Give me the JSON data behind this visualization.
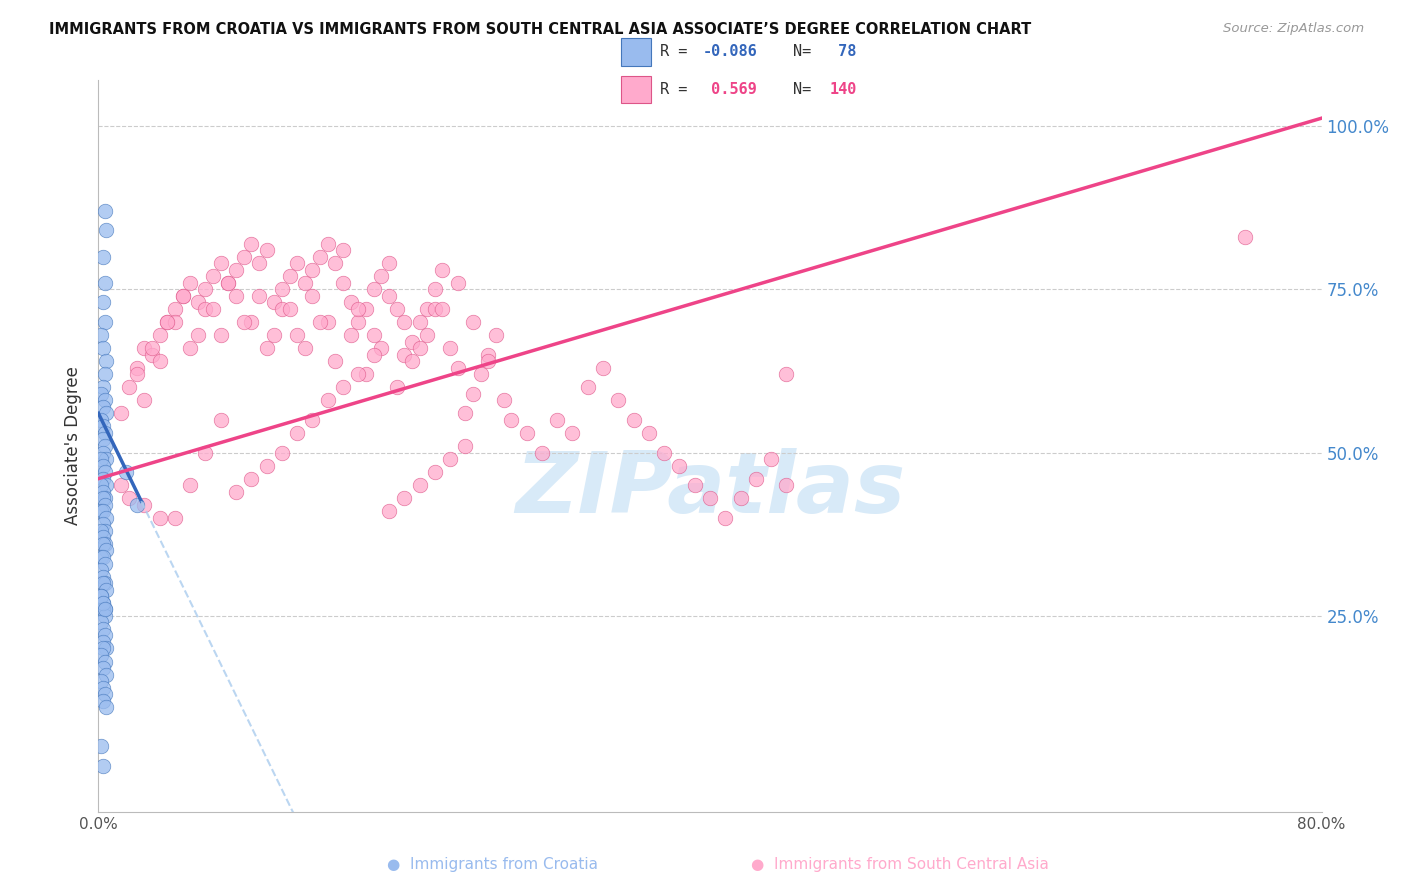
{
  "title": "IMMIGRANTS FROM CROATIA VS IMMIGRANTS FROM SOUTH CENTRAL ASIA ASSOCIATE’S DEGREE CORRELATION CHART",
  "source": "Source: ZipAtlas.com",
  "ylabel": "Associate's Degree",
  "xlim": [
    0,
    80
  ],
  "ylim": [
    -5,
    107
  ],
  "blue_color": "#99BBEE",
  "pink_color": "#FFAACC",
  "blue_edge_color": "#4477BB",
  "pink_edge_color": "#DD5588",
  "blue_line_color": "#3366BB",
  "pink_line_color": "#EE4488",
  "blue_line_dash_color": "#AACCEE",
  "grid_color": "#CCCCCC",
  "right_tick_color": "#4488CC",
  "blue_intercept": 56.0,
  "blue_slope": -4.8,
  "pink_intercept": 46.0,
  "pink_slope": 0.69,
  "blue_x": [
    0.4,
    0.5,
    0.3,
    0.4,
    0.3,
    0.4,
    0.2,
    0.3,
    0.5,
    0.4,
    0.3,
    0.2,
    0.4,
    0.3,
    0.5,
    0.2,
    0.3,
    0.4,
    0.3,
    0.4,
    0.3,
    0.5,
    0.2,
    0.3,
    0.4,
    0.3,
    0.5,
    0.2,
    0.3,
    0.4,
    0.3,
    0.4,
    0.2,
    0.3,
    0.5,
    0.3,
    0.4,
    0.2,
    0.3,
    0.4,
    0.3,
    0.5,
    0.2,
    0.3,
    0.4,
    0.2,
    0.3,
    0.4,
    0.3,
    0.5,
    0.2,
    0.3,
    0.4,
    0.3,
    0.4,
    0.2,
    0.3,
    0.4,
    0.3,
    0.5,
    0.3,
    0.2,
    0.4,
    0.3,
    0.5,
    0.2,
    0.3,
    0.4,
    0.3,
    0.5,
    1.8,
    2.5,
    0.2,
    0.3,
    0.4,
    0.2,
    0.3
  ],
  "blue_y": [
    87,
    84,
    80,
    76,
    73,
    70,
    68,
    66,
    64,
    62,
    60,
    59,
    58,
    57,
    56,
    55,
    54,
    53,
    52,
    51,
    50,
    49,
    49,
    48,
    47,
    46,
    45,
    45,
    44,
    43,
    43,
    42,
    41,
    41,
    40,
    39,
    38,
    38,
    37,
    36,
    36,
    35,
    34,
    34,
    33,
    32,
    31,
    30,
    30,
    29,
    28,
    27,
    26,
    26,
    25,
    24,
    23,
    22,
    21,
    20,
    20,
    19,
    18,
    17,
    16,
    15,
    14,
    13,
    12,
    11,
    47,
    42,
    28,
    27,
    26,
    5,
    2
  ],
  "pink_x": [
    1.5,
    2.0,
    2.5,
    3.0,
    3.5,
    4.0,
    4.5,
    5.0,
    5.5,
    6.0,
    6.5,
    7.0,
    7.5,
    8.0,
    8.5,
    9.0,
    9.5,
    10.0,
    10.5,
    11.0,
    11.5,
    12.0,
    12.5,
    13.0,
    13.5,
    14.0,
    14.5,
    15.0,
    15.5,
    16.0,
    16.5,
    17.0,
    17.5,
    18.0,
    18.5,
    19.0,
    19.5,
    20.0,
    20.5,
    21.0,
    21.5,
    22.0,
    22.5,
    23.0,
    23.5,
    24.0,
    24.5,
    25.0,
    25.5,
    26.0,
    3.0,
    4.0,
    5.0,
    6.0,
    7.0,
    8.0,
    9.0,
    10.0,
    11.0,
    12.0,
    13.0,
    14.0,
    15.0,
    16.0,
    17.0,
    18.0,
    19.0,
    20.0,
    21.0,
    22.0,
    2.5,
    3.5,
    4.5,
    5.5,
    6.5,
    7.5,
    8.5,
    9.5,
    10.5,
    11.5,
    12.5,
    13.5,
    14.5,
    15.5,
    16.5,
    17.5,
    18.5,
    19.5,
    20.5,
    21.5,
    22.5,
    23.5,
    24.5,
    25.5,
    26.5,
    27.0,
    28.0,
    29.0,
    30.0,
    31.0,
    32.0,
    33.0,
    34.0,
    35.0,
    36.0,
    37.0,
    38.0,
    39.0,
    40.0,
    41.0,
    42.0,
    43.0,
    44.0,
    45.0,
    24.0,
    23.0,
    22.0,
    21.0,
    20.0,
    19.0,
    18.0,
    17.0,
    16.0,
    15.0,
    14.0,
    13.0,
    12.0,
    11.0,
    10.0,
    9.0,
    8.0,
    7.0,
    6.0,
    5.0,
    4.0,
    3.0,
    2.0,
    1.5,
    75.0,
    45.0
  ],
  "pink_y": [
    56,
    60,
    63,
    66,
    65,
    68,
    70,
    72,
    74,
    76,
    73,
    75,
    77,
    79,
    76,
    78,
    80,
    82,
    79,
    81,
    73,
    75,
    77,
    79,
    76,
    78,
    80,
    82,
    79,
    81,
    73,
    70,
    72,
    75,
    77,
    79,
    72,
    65,
    67,
    70,
    72,
    75,
    78,
    66,
    63,
    56,
    59,
    62,
    65,
    68,
    58,
    64,
    70,
    66,
    72,
    68,
    74,
    70,
    66,
    72,
    68,
    74,
    70,
    76,
    72,
    68,
    74,
    70,
    66,
    72,
    62,
    66,
    70,
    74,
    68,
    72,
    76,
    70,
    74,
    68,
    72,
    66,
    70,
    64,
    68,
    62,
    66,
    60,
    64,
    68,
    72,
    76,
    70,
    64,
    58,
    55,
    53,
    50,
    55,
    53,
    60,
    63,
    58,
    55,
    53,
    50,
    48,
    45,
    43,
    40,
    43,
    46,
    49,
    45,
    51,
    49,
    47,
    45,
    43,
    41,
    65,
    62,
    60,
    58,
    55,
    53,
    50,
    48,
    46,
    44,
    55,
    50,
    45,
    40,
    40,
    42,
    43,
    45,
    83,
    62
  ]
}
